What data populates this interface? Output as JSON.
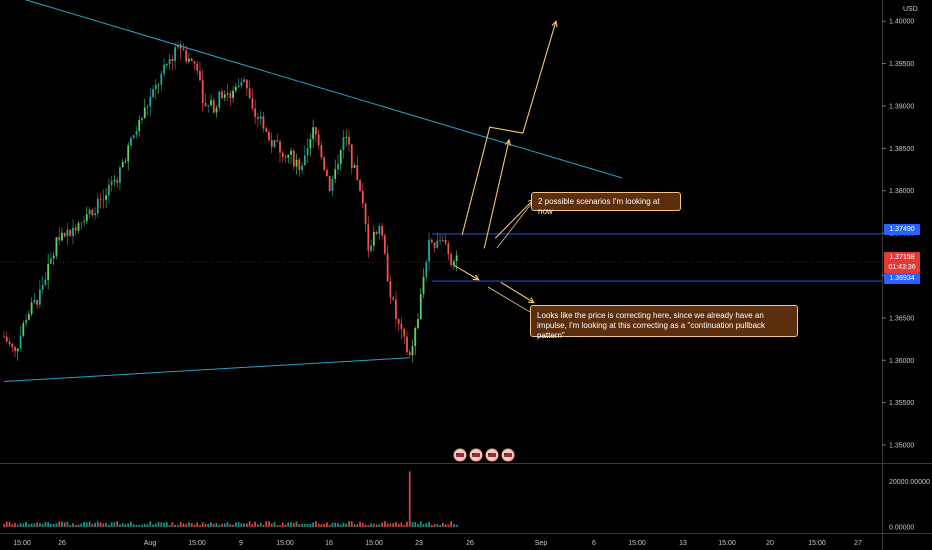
{
  "currency_label": "USD",
  "colors": {
    "up": "#26a69a",
    "up_bright": "#5fd35f",
    "down": "#ef5350",
    "trendline": "#2aa3c8",
    "level": "#2962ff",
    "arrow": "#f7c46c",
    "last_price_line": "#7a1f1f",
    "note_bg": "#5b2e0d",
    "note_border": "#f3c58e"
  },
  "price_tags": {
    "upper_level": "1.37490",
    "last_price": "1.37158",
    "countdown": "01:43:36",
    "lower_level": "1.36934"
  },
  "annotations": {
    "scenarios": "2 possible scenarios I'm looking at now",
    "correction_line1": "Looks like the price is correcting here, since we already have an",
    "correction_line2": "impulse, I'm looking at this correcting as a \"continuation pullback pattern\""
  },
  "chart_data": {
    "type": "candlestick",
    "symbol_currency": "USD",
    "price_axis": {
      "min": 1.348,
      "max": 1.4025,
      "ticks": [
        "1.40000",
        "1.39500",
        "1.39000",
        "1.38500",
        "1.38000",
        "1.37500",
        "1.37000",
        "1.36500",
        "1.36000",
        "1.35500",
        "1.35000"
      ]
    },
    "volume_axis": {
      "min": 0,
      "max": 26000,
      "ticks": [
        "20000.00000",
        "0.00000"
      ]
    },
    "time_axis_ticks": [
      "15:00",
      "26",
      "Aug",
      "15:00",
      "9",
      "15:00",
      "16",
      "15:00",
      "23",
      "26",
      "Sep",
      "6",
      "15:00",
      "13",
      "15:00",
      "20",
      "15:00",
      "27"
    ],
    "price_path": [
      [
        0,
        1.3628
      ],
      [
        4,
        1.3608
      ],
      [
        8,
        1.3652
      ],
      [
        12,
        1.3672
      ],
      [
        16,
        1.3708
      ],
      [
        20,
        1.3748
      ],
      [
        24,
        1.3752
      ],
      [
        28,
        1.3768
      ],
      [
        32,
        1.3778
      ],
      [
        36,
        1.379
      ],
      [
        40,
        1.3808
      ],
      [
        44,
        1.3842
      ],
      [
        48,
        1.3872
      ],
      [
        52,
        1.3902
      ],
      [
        56,
        1.3928
      ],
      [
        60,
        1.3955
      ],
      [
        64,
        1.397
      ],
      [
        66,
        1.3958
      ],
      [
        70,
        1.3948
      ],
      [
        72,
        1.3898
      ],
      [
        76,
        1.39
      ],
      [
        80,
        1.392
      ],
      [
        82,
        1.391
      ],
      [
        86,
        1.3935
      ],
      [
        88,
        1.392
      ],
      [
        90,
        1.3892
      ],
      [
        94,
        1.388
      ],
      [
        96,
        1.3858
      ],
      [
        100,
        1.385
      ],
      [
        104,
        1.384
      ],
      [
        108,
        1.3825
      ],
      [
        110,
        1.3845
      ],
      [
        112,
        1.387
      ],
      [
        114,
        1.386
      ],
      [
        116,
        1.383
      ],
      [
        118,
        1.3805
      ],
      [
        120,
        1.382
      ],
      [
        122,
        1.3855
      ],
      [
        124,
        1.3862
      ],
      [
        126,
        1.3835
      ],
      [
        128,
        1.381
      ],
      [
        130,
        1.378
      ],
      [
        132,
        1.3735
      ],
      [
        134,
        1.3745
      ],
      [
        136,
        1.376
      ],
      [
        138,
        1.372
      ],
      [
        140,
        1.368
      ],
      [
        142,
        1.365
      ],
      [
        144,
        1.363
      ],
      [
        146,
        1.3612
      ],
      [
        147,
        1.3605
      ],
      [
        148,
        1.362
      ],
      [
        150,
        1.365
      ],
      [
        152,
        1.37
      ],
      [
        154,
        1.3735
      ],
      [
        156,
        1.3728
      ],
      [
        158,
        1.374
      ],
      [
        160,
        1.3735
      ],
      [
        162,
        1.372
      ],
      [
        164,
        1.3716
      ]
    ],
    "trendlines": [
      {
        "from": [
          5,
          1.4028
        ],
        "to": [
          224,
          1.3815
        ]
      },
      {
        "from": [
          0,
          1.3575
        ],
        "to": [
          147,
          1.3603
        ]
      }
    ],
    "horizontal_levels": [
      1.3749,
      1.36934
    ],
    "last_price": 1.37158,
    "scenario_arrows": [
      [
        [
          166,
          1.3748
        ],
        [
          176,
          1.3875
        ],
        [
          188,
          1.3868
        ],
        [
          200,
          1.4
        ]
      ],
      [
        [
          174,
          1.3732
        ],
        [
          183,
          1.386
        ]
      ],
      [
        [
          178,
          1.3744
        ],
        [
          192,
          1.379
        ]
      ],
      [
        [
          163,
          1.3712
        ],
        [
          172,
          1.3695
        ]
      ],
      [
        [
          180,
          1.3692
        ],
        [
          192,
          1.3668
        ]
      ]
    ]
  }
}
